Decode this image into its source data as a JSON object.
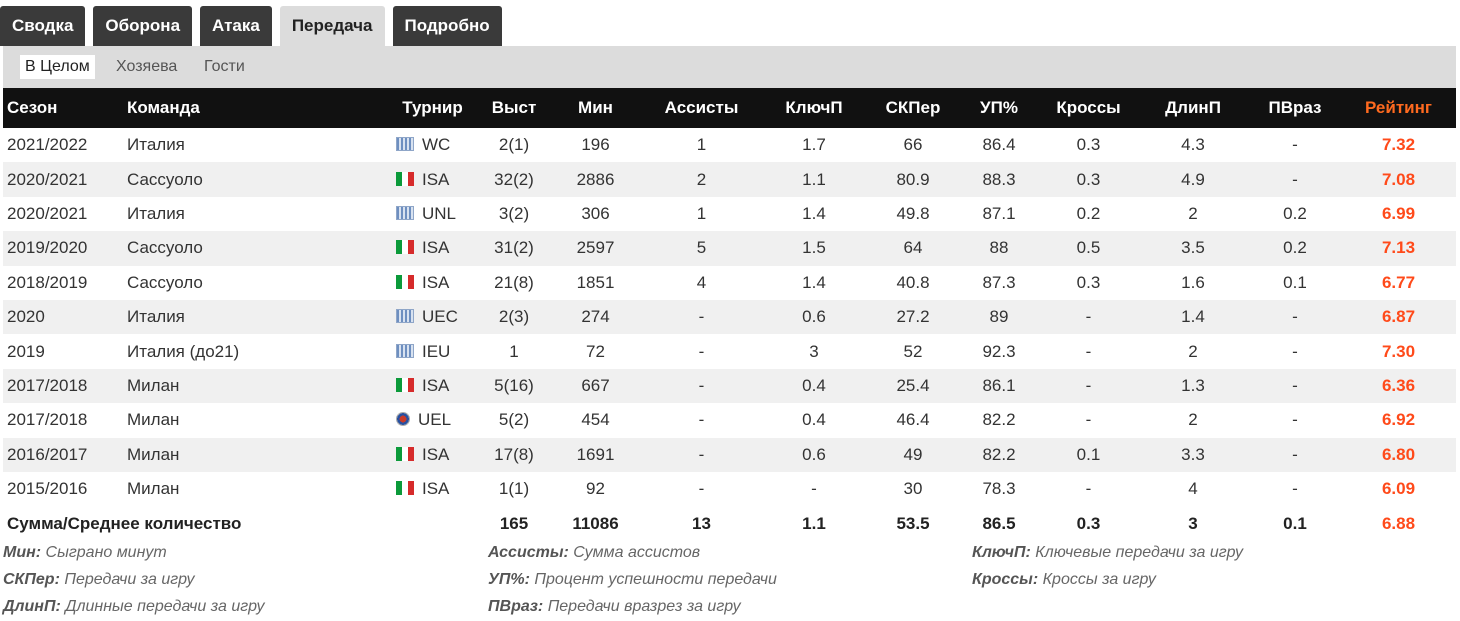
{
  "tabs": [
    "Сводка",
    "Оборона",
    "Атака",
    "Передача",
    "Подробно"
  ],
  "subtabs": [
    "В Целом",
    "Хозяева",
    "Гости"
  ],
  "columns": {
    "season": "Сезон",
    "team": "Команда",
    "tournament": "Турнир",
    "apps": "Выст",
    "mins": "Мин",
    "assists": "Ассисты",
    "keyp": "КлючП",
    "skper": "СКПер",
    "passpct": "УП%",
    "crosses": "Кроссы",
    "longp": "ДлинП",
    "thrb": "ПВраз",
    "rating": "Рейтинг"
  },
  "rows": [
    {
      "season": "2021/2022",
      "team": "Италия",
      "flag": "intl-icon",
      "tournament": "WC",
      "apps": "2(1)",
      "mins": "196",
      "assists": "1",
      "keyp": "1.7",
      "skper": "66",
      "passpct": "86.4",
      "crosses": "0.3",
      "longp": "4.3",
      "thrb": "-",
      "rating": "7.32"
    },
    {
      "season": "2020/2021",
      "team": "Сассуоло",
      "flag": "italy-flag-icon",
      "tournament": "ISA",
      "apps": "32(2)",
      "mins": "2886",
      "assists": "2",
      "keyp": "1.1",
      "skper": "80.9",
      "passpct": "88.3",
      "crosses": "0.3",
      "longp": "4.9",
      "thrb": "-",
      "rating": "7.08"
    },
    {
      "season": "2020/2021",
      "team": "Италия",
      "flag": "intl-icon",
      "tournament": "UNL",
      "apps": "3(2)",
      "mins": "306",
      "assists": "1",
      "keyp": "1.4",
      "skper": "49.8",
      "passpct": "87.1",
      "crosses": "0.2",
      "longp": "2",
      "thrb": "0.2",
      "rating": "6.99"
    },
    {
      "season": "2019/2020",
      "team": "Сассуоло",
      "flag": "italy-flag-icon",
      "tournament": "ISA",
      "apps": "31(2)",
      "mins": "2597",
      "assists": "5",
      "keyp": "1.5",
      "skper": "64",
      "passpct": "88",
      "crosses": "0.5",
      "longp": "3.5",
      "thrb": "0.2",
      "rating": "7.13"
    },
    {
      "season": "2018/2019",
      "team": "Сассуоло",
      "flag": "italy-flag-icon",
      "tournament": "ISA",
      "apps": "21(8)",
      "mins": "1851",
      "assists": "4",
      "keyp": "1.4",
      "skper": "40.8",
      "passpct": "87.3",
      "crosses": "0.3",
      "longp": "1.6",
      "thrb": "0.1",
      "rating": "6.77"
    },
    {
      "season": "2020",
      "team": "Италия",
      "flag": "intl-icon",
      "tournament": "UEC",
      "apps": "2(3)",
      "mins": "274",
      "assists": "-",
      "keyp": "0.6",
      "skper": "27.2",
      "passpct": "89",
      "crosses": "-",
      "longp": "1.4",
      "thrb": "-",
      "rating": "6.87"
    },
    {
      "season": "2019",
      "team": "Италия (до21)",
      "flag": "intl-icon",
      "tournament": "IEU",
      "apps": "1",
      "mins": "72",
      "assists": "-",
      "keyp": "3",
      "skper": "52",
      "passpct": "92.3",
      "crosses": "-",
      "longp": "2",
      "thrb": "-",
      "rating": "7.30"
    },
    {
      "season": "2017/2018",
      "team": "Милан",
      "flag": "italy-flag-icon",
      "tournament": "ISA",
      "apps": "5(16)",
      "mins": "667",
      "assists": "-",
      "keyp": "0.4",
      "skper": "25.4",
      "passpct": "86.1",
      "crosses": "-",
      "longp": "1.3",
      "thrb": "-",
      "rating": "6.36"
    },
    {
      "season": "2017/2018",
      "team": "Милан",
      "flag": "uefa-icon",
      "tournament": "UEL",
      "apps": "5(2)",
      "mins": "454",
      "assists": "-",
      "keyp": "0.4",
      "skper": "46.4",
      "passpct": "82.2",
      "crosses": "-",
      "longp": "2",
      "thrb": "-",
      "rating": "6.92"
    },
    {
      "season": "2016/2017",
      "team": "Милан",
      "flag": "italy-flag-icon",
      "tournament": "ISA",
      "apps": "17(8)",
      "mins": "1691",
      "assists": "-",
      "keyp": "0.6",
      "skper": "49",
      "passpct": "82.2",
      "crosses": "0.1",
      "longp": "3.3",
      "thrb": "-",
      "rating": "6.80"
    },
    {
      "season": "2015/2016",
      "team": "Милан",
      "flag": "italy-flag-icon",
      "tournament": "ISA",
      "apps": "1(1)",
      "mins": "92",
      "assists": "-",
      "keyp": "-",
      "skper": "30",
      "passpct": "78.3",
      "crosses": "-",
      "longp": "4",
      "thrb": "-",
      "rating": "6.09"
    }
  ],
  "total": {
    "label": "Сумма/Среднее количество",
    "apps": "165",
    "mins": "11086",
    "assists": "13",
    "keyp": "1.1",
    "skper": "53.5",
    "passpct": "86.5",
    "crosses": "0.3",
    "longp": "3",
    "thrb": "0.1",
    "rating": "6.88"
  },
  "legend": [
    {
      "abbr": "Мин:",
      "desc": "Сыграно минут"
    },
    {
      "abbr": "Ассисты:",
      "desc": "Сумма ассистов"
    },
    {
      "abbr": "КлючП:",
      "desc": "Ключевые передачи за игру"
    },
    {
      "abbr": "СКПер:",
      "desc": "Передачи за игру"
    },
    {
      "abbr": "УП%:",
      "desc": "Процент успешности передачи"
    },
    {
      "abbr": "Кроссы:",
      "desc": "Кроссы за игру"
    },
    {
      "abbr": "ДлинП:",
      "desc": "Длинные передачи за игру"
    },
    {
      "abbr": "ПВраз:",
      "desc": "Передачи вразрез за игру"
    }
  ],
  "colors": {
    "tab_bg": "#3a3a3a",
    "header_bg": "#111111",
    "rating": "#ff4a1a",
    "stripe": "#f0f0f0"
  }
}
